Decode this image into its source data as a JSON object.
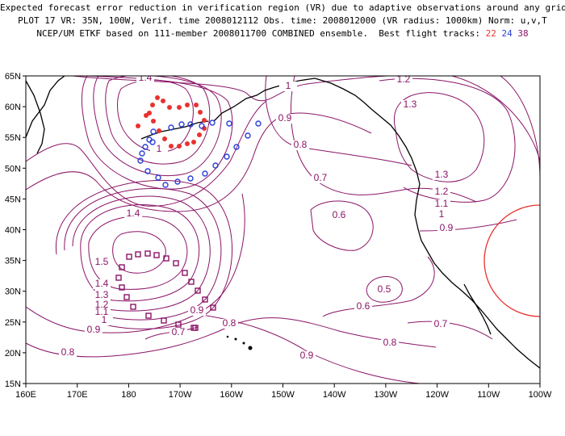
{
  "title": {
    "line1": "Expected forecast error reduction in verification region (VR) due to adaptive observations around any grid point.",
    "line2": "PLOT 17 VR: 35N, 100W, Verif. time 2008012112 Obs. time: 2008012000 (VR radius: 1000km) Norm: u,v,T",
    "line3_prefix": "NCEP/UM ETKF based on 111-member 2008011700 COMBINED ensemble.  Best flight tracks: ",
    "track_22": "22",
    "track_24": "24",
    "track_38": "38"
  },
  "axes": {
    "x_ticks": [
      "160E",
      "170E",
      "180",
      "170W",
      "160W",
      "150W",
      "140W",
      "130W",
      "120W",
      "110W",
      "100W"
    ],
    "y_ticks": [
      "65N",
      "60N",
      "55N",
      "50N",
      "45N",
      "40N",
      "35N",
      "30N",
      "25N",
      "20N",
      "15N"
    ]
  },
  "colors": {
    "contour": "#8a1467",
    "track22": "#e8322e",
    "track24": "#2a3fd8",
    "track38": "#8a1467",
    "vr_circle": "#e8322e"
  },
  "contour_labels": [
    {
      "text": "1.4",
      "x": 180,
      "y": 100
    },
    {
      "text": "1",
      "x": 357,
      "y": 110
    },
    {
      "text": "1.2",
      "x": 500,
      "y": 102
    },
    {
      "text": "1.3",
      "x": 508,
      "y": 133
    },
    {
      "text": "0.9",
      "x": 353,
      "y": 150
    },
    {
      "text": "0.8",
      "x": 372,
      "y": 183
    },
    {
      "text": "0.7",
      "x": 397,
      "y": 224
    },
    {
      "text": "1.3",
      "x": 547,
      "y": 220
    },
    {
      "text": "1.2",
      "x": 547,
      "y": 241
    },
    {
      "text": "1.1",
      "x": 547,
      "y": 256
    },
    {
      "text": "1",
      "x": 547,
      "y": 269
    },
    {
      "text": "0.9",
      "x": 553,
      "y": 286
    },
    {
      "text": "0.6",
      "x": 420,
      "y": 270
    },
    {
      "text": "1.4",
      "x": 165,
      "y": 268
    },
    {
      "text": "1.5",
      "x": 126,
      "y": 328
    },
    {
      "text": "1.4",
      "x": 126,
      "y": 355
    },
    {
      "text": "1.3",
      "x": 126,
      "y": 369
    },
    {
      "text": "1.2",
      "x": 126,
      "y": 381
    },
    {
      "text": "1.1",
      "x": 126,
      "y": 390
    },
    {
      "text": "1",
      "x": 129,
      "y": 400
    },
    {
      "text": "0.9",
      "x": 116,
      "y": 412
    },
    {
      "text": "0.5",
      "x": 476,
      "y": 362
    },
    {
      "text": "0.6",
      "x": 450,
      "y": 383
    },
    {
      "text": "0.9",
      "x": 244,
      "y": 388
    },
    {
      "text": "0.8",
      "x": 284,
      "y": 404
    },
    {
      "text": "0.7",
      "x": 221,
      "y": 415
    },
    {
      "text": "0.7",
      "x": 546,
      "y": 405
    },
    {
      "text": "0.8",
      "x": 84,
      "y": 440
    },
    {
      "text": "0.8",
      "x": 483,
      "y": 428
    },
    {
      "text": "0.9",
      "x": 380,
      "y": 444
    },
    {
      "text": "1",
      "x": 197,
      "y": 188
    }
  ],
  "track22_points": [
    [
      185,
      140
    ],
    [
      189,
      130
    ],
    [
      195,
      121
    ],
    [
      202,
      125
    ],
    [
      210,
      133
    ],
    [
      222,
      133
    ],
    [
      232,
      130
    ],
    [
      243,
      130
    ],
    [
      248,
      139
    ],
    [
      253,
      149
    ],
    [
      253,
      159
    ],
    [
      247,
      167
    ],
    [
      240,
      176
    ],
    [
      232,
      178
    ],
    [
      222,
      181
    ],
    [
      212,
      181
    ],
    [
      204,
      172
    ],
    [
      197,
      162
    ],
    [
      190,
      150
    ],
    [
      181,
      143
    ],
    [
      171,
      156
    ]
  ],
  "track24_points": [
    [
      190,
      163
    ],
    [
      185,
      173
    ],
    [
      180,
      182
    ],
    [
      176,
      190
    ],
    [
      174,
      199
    ],
    [
      183,
      212
    ],
    [
      196,
      220
    ],
    [
      205,
      229
    ],
    [
      220,
      225
    ],
    [
      236,
      221
    ],
    [
      254,
      215
    ],
    [
      267,
      205
    ],
    [
      281,
      194
    ],
    [
      293,
      182
    ],
    [
      307,
      168
    ],
    [
      320,
      153
    ],
    [
      284,
      153
    ],
    [
      263,
      152
    ],
    [
      250,
      156
    ],
    [
      236,
      154
    ],
    [
      225,
      154
    ],
    [
      212,
      158
    ],
    [
      189,
      176
    ]
  ],
  "track38_points": [
    [
      151,
      331
    ],
    [
      160,
      318
    ],
    [
      171,
      315
    ],
    [
      183,
      314
    ],
    [
      194,
      316
    ],
    [
      206,
      320
    ],
    [
      218,
      326
    ],
    [
      229,
      338
    ],
    [
      237,
      349
    ],
    [
      245,
      360
    ],
    [
      254,
      371
    ],
    [
      264,
      381
    ],
    [
      240,
      406
    ],
    [
      221,
      402
    ],
    [
      203,
      397
    ],
    [
      184,
      391
    ],
    [
      165,
      380
    ],
    [
      157,
      368
    ],
    [
      151,
      356
    ],
    [
      147,
      344
    ],
    [
      242,
      406
    ]
  ],
  "vr_circle": {
    "lon_center": -100,
    "lat_center": 35,
    "radius_deg": 9
  }
}
